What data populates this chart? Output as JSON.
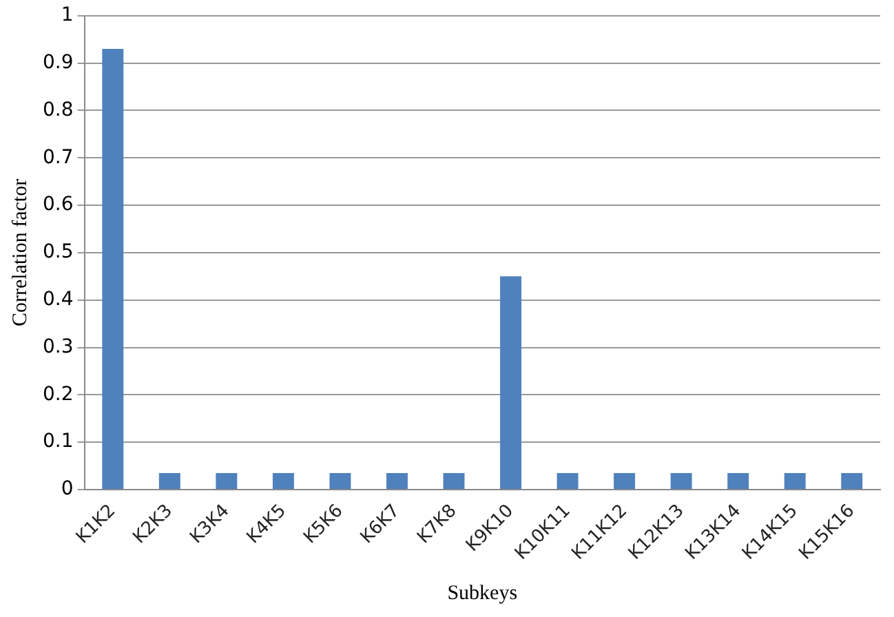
{
  "chart_data": {
    "type": "bar",
    "xlabel": "Subkeys",
    "ylabel": "Correlation factor",
    "categories": [
      "K1K2",
      "K2K3",
      "K3K4",
      "K4K5",
      "K5K6",
      "K6K7",
      "K7K8",
      "K9K10",
      "K10K11",
      "K11K12",
      "K12K13",
      "K13K14",
      "K14K15",
      "K15K16"
    ],
    "values": [
      0.93,
      0.035,
      0.035,
      0.035,
      0.035,
      0.035,
      0.035,
      0.45,
      0.035,
      0.035,
      0.035,
      0.035,
      0.035,
      0.035
    ],
    "color": "#4f81bd",
    "ylim": [
      0,
      1
    ],
    "yticks": [
      0,
      0.1,
      0.2,
      0.3,
      0.4,
      0.5,
      0.6,
      0.7,
      0.8,
      0.9,
      1
    ],
    "grid": "y",
    "legend": false
  }
}
